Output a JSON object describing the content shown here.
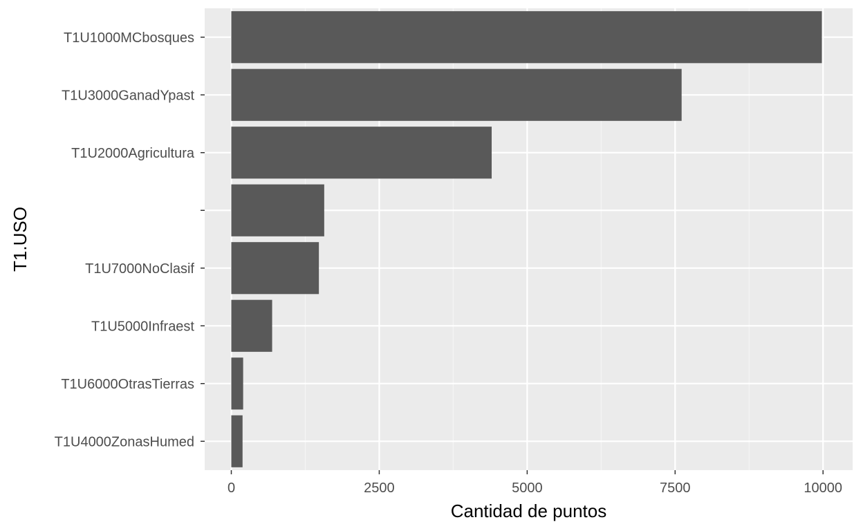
{
  "chart_data": {
    "type": "bar",
    "orientation": "horizontal",
    "categories": [
      "T1U1000MCbosques",
      "T1U3000GanadYpast",
      "T1U2000Agricultura",
      "",
      "T1U7000NoClasif",
      "T1U5000Infraest",
      "T1U6000OtrasTierras",
      "T1U4000ZonasHumed"
    ],
    "values": [
      9980,
      7610,
      4400,
      1570,
      1480,
      690,
      200,
      190
    ],
    "xlabel": "Cantidad de puntos",
    "ylabel": "T1.USO",
    "xlim": [
      -450,
      10500
    ],
    "x_ticks": [
      0,
      2500,
      5000,
      7500,
      10000
    ],
    "x_tick_labels": [
      "0",
      "2500",
      "5000",
      "7500",
      "10000"
    ],
    "grid": true,
    "legend": "none",
    "colors": {
      "bar": "#595959",
      "panel": "#ebebeb",
      "grid_major": "#ffffff",
      "grid_minor": "#f5f5f5",
      "tick_text": "#4d4d4d"
    }
  }
}
